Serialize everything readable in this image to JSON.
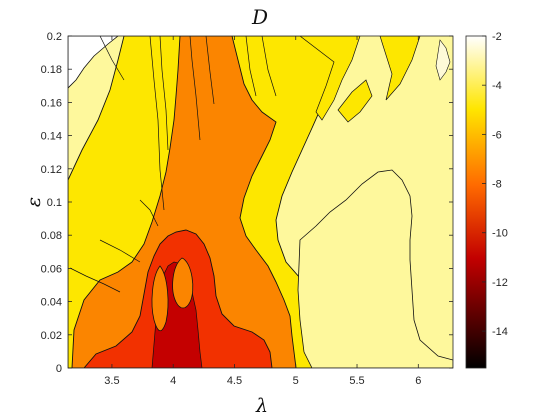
{
  "chart_data": {
    "type": "heatmap",
    "title": "D",
    "xlabel": "λ",
    "ylabel": "ε",
    "xlim": [
      3.1416,
      6.2832
    ],
    "ylim": [
      0,
      0.2
    ],
    "x_ticks": [
      "3.5",
      "4",
      "4.5",
      "5",
      "5.5",
      "6"
    ],
    "x_tick_values": [
      3.5,
      4,
      4.5,
      5,
      5.5,
      6
    ],
    "y_ticks": [
      "0",
      "0.02",
      "0.04",
      "0.06",
      "0.08",
      "0.1",
      "0.12",
      "0.14",
      "0.16",
      "0.18",
      "0.2"
    ],
    "y_tick_values": [
      0,
      0.02,
      0.04,
      0.06,
      0.08,
      0.1,
      0.12,
      0.14,
      0.16,
      0.18,
      0.2
    ],
    "colorbar": {
      "colormap": "hot",
      "range": [
        -15.5,
        -2
      ],
      "ticks": [
        "-2",
        "-4",
        "-6",
        "-8",
        "-10",
        "-12",
        "-14"
      ],
      "tick_values": [
        -2,
        -4,
        -6,
        -8,
        -10,
        -12,
        -14
      ]
    },
    "regions": [
      {
        "level": -4,
        "color": "#fef89c",
        "description_lambda_range": [
          3.14,
          6.28
        ]
      },
      {
        "level": -6,
        "color": "#fde700",
        "description_lambda_range": [
          3.14,
          5.9
        ]
      },
      {
        "level": -8,
        "color": "#fb8500",
        "description_lambda_range": [
          3.5,
          4.9
        ]
      },
      {
        "level": -10,
        "color": "#f23100",
        "description_lambda_range": [
          3.85,
          4.8
        ]
      },
      {
        "level": -12,
        "color": "#c40000",
        "description_lambda_range": [
          3.9,
          4.3
        ]
      }
    ],
    "grid": false,
    "legend": "colorbar-right"
  }
}
